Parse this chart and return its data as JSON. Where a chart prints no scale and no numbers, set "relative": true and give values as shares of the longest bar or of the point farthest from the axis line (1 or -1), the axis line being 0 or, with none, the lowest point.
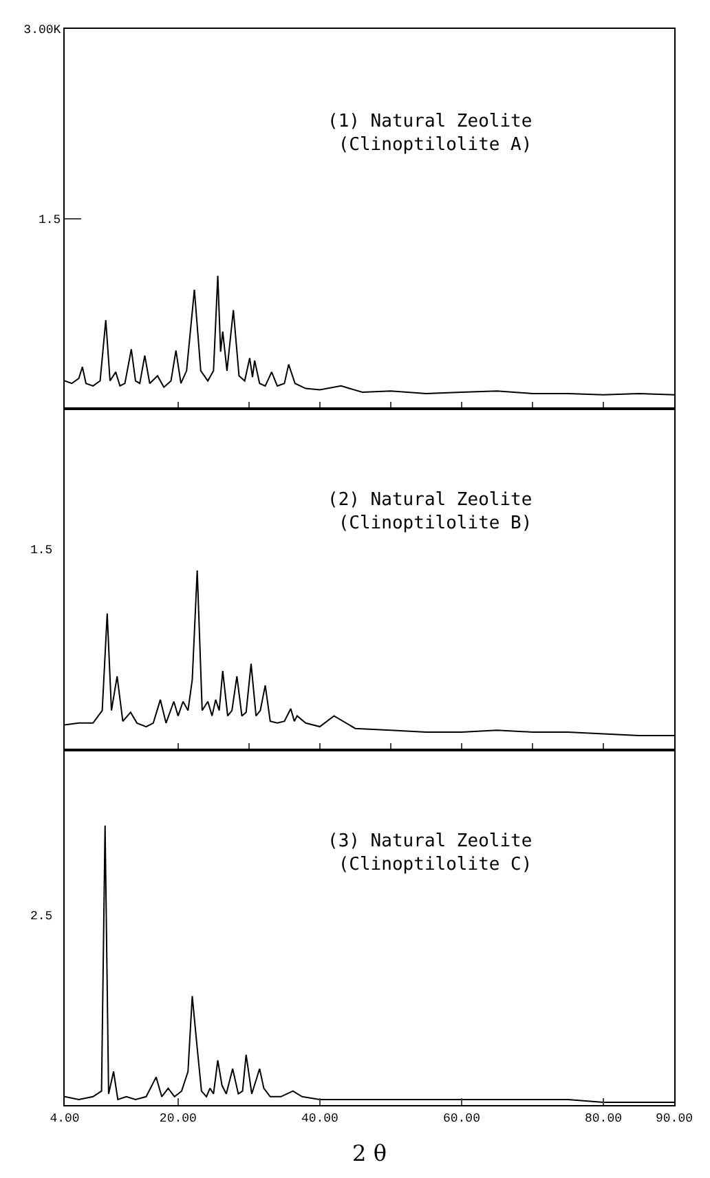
{
  "chart_data": [
    {
      "type": "line",
      "title": "(1) Natural Zeolite\n(Clinoptilolite A)",
      "xlim": [
        4,
        90
      ],
      "xticks": [
        {
          "value": 20,
          "label": null
        },
        {
          "value": 30,
          "label": null
        },
        {
          "value": 40,
          "label": null
        },
        {
          "value": 50,
          "label": null
        },
        {
          "value": 60,
          "label": null
        },
        {
          "value": 70,
          "label": null
        },
        {
          "value": 80,
          "label": null
        }
      ],
      "ylim": [
        0,
        3
      ],
      "yticks": [
        {
          "value": 1.5,
          "label": "1.5"
        },
        {
          "value": 3,
          "label": "3.00K"
        }
      ],
      "tick_labels": "y",
      "marker": "none",
      "line_style": "solid",
      "series": [
        {
          "color": "#000000",
          "x": [
            4,
            5,
            6,
            6.5,
            7,
            8,
            9,
            9.8,
            10.4,
            11.2,
            11.8,
            12.5,
            13.4,
            14,
            14.6,
            15.3,
            16,
            17.1,
            18,
            19,
            19.7,
            20.4,
            21.2,
            22.3,
            23.2,
            24.2,
            25,
            25.6,
            26,
            26.3,
            26.9,
            27.8,
            28.6,
            29.4,
            30.1,
            30.5,
            30.8,
            31.5,
            32.3,
            33.2,
            34,
            35,
            35.6,
            36.5,
            38,
            40,
            43,
            46,
            50,
            55,
            60,
            65,
            70,
            75,
            80,
            85,
            90
          ],
          "values": [
            0.22,
            0.2,
            0.24,
            0.33,
            0.2,
            0.18,
            0.22,
            0.7,
            0.22,
            0.29,
            0.18,
            0.2,
            0.47,
            0.22,
            0.2,
            0.42,
            0.2,
            0.26,
            0.17,
            0.22,
            0.46,
            0.2,
            0.3,
            0.94,
            0.3,
            0.22,
            0.3,
            1.05,
            0.45,
            0.61,
            0.3,
            0.78,
            0.26,
            0.22,
            0.4,
            0.25,
            0.38,
            0.2,
            0.18,
            0.29,
            0.18,
            0.2,
            0.35,
            0.2,
            0.16,
            0.15,
            0.18,
            0.13,
            0.14,
            0.12,
            0.13,
            0.14,
            0.12,
            0.12,
            0.11,
            0.12,
            0.11
          ]
        }
      ]
    },
    {
      "type": "line",
      "title": "(2) Natural Zeolite\n(Clinoptilolite B)",
      "annotations": [
        "1.5"
      ],
      "relative": true,
      "xlim": [
        4,
        90
      ],
      "xticks": [
        {
          "value": 20,
          "label": null
        },
        {
          "value": 30,
          "label": null
        },
        {
          "value": 40,
          "label": null
        },
        {
          "value": 50,
          "label": null
        },
        {
          "value": 60,
          "label": null
        },
        {
          "value": 70,
          "label": null
        },
        {
          "value": 80,
          "label": null
        }
      ],
      "tick_labels": false,
      "marker": "none",
      "line_style": "solid",
      "series": [
        {
          "color": "#000000",
          "x": [
            4,
            6,
            8,
            9.3,
            10,
            10.6,
            11.4,
            12.2,
            13.3,
            14.2,
            15.5,
            16.5,
            17.5,
            18.3,
            19.4,
            20,
            20.7,
            21.4,
            22,
            22.7,
            23.4,
            24.2,
            24.8,
            25.3,
            25.8,
            26.3,
            27,
            27.6,
            28.3,
            29,
            29.6,
            30.3,
            31,
            31.6,
            32.3,
            33,
            34,
            35,
            35.9,
            36.4,
            36.8,
            38,
            40,
            42,
            45,
            50,
            55,
            60,
            65,
            70,
            75,
            80,
            85,
            90
          ],
          "values": [
            0.14,
            0.15,
            0.15,
            0.22,
            0.76,
            0.22,
            0.41,
            0.16,
            0.21,
            0.15,
            0.13,
            0.15,
            0.28,
            0.15,
            0.27,
            0.19,
            0.27,
            0.22,
            0.39,
            1,
            0.22,
            0.27,
            0.19,
            0.28,
            0.22,
            0.44,
            0.19,
            0.22,
            0.41,
            0.19,
            0.21,
            0.48,
            0.19,
            0.22,
            0.36,
            0.16,
            0.15,
            0.16,
            0.23,
            0.16,
            0.19,
            0.15,
            0.13,
            0.19,
            0.12,
            0.11,
            0.1,
            0.1,
            0.11,
            0.1,
            0.1,
            0.09,
            0.08,
            0.08
          ]
        }
      ]
    },
    {
      "type": "line",
      "title": "(3) Natural Zeolite\n(Clinoptilolite C)",
      "annotations": [
        "2.5"
      ],
      "relative": true,
      "xlabel": "2 θ",
      "xlim": [
        4,
        90
      ],
      "xticks": [
        {
          "value": 4,
          "label": "4.00"
        },
        {
          "value": 20,
          "label": "20.00"
        },
        {
          "value": 40,
          "label": "40.00"
        },
        {
          "value": 60,
          "label": "60.00"
        },
        {
          "value": 80,
          "label": "80.00"
        },
        {
          "value": 90,
          "label": "90.00"
        }
      ],
      "tick_labels": "x",
      "marker": "none",
      "line_style": "solid",
      "series": [
        {
          "color": "#000000",
          "x": [
            4,
            6,
            8,
            9.2,
            9.7,
            10.2,
            10.9,
            11.5,
            12.7,
            14,
            15.5,
            16.9,
            17.7,
            18.6,
            19.5,
            20.5,
            21.4,
            22,
            22.6,
            23.3,
            24,
            24.5,
            25,
            25.6,
            26.2,
            26.8,
            27.7,
            28.5,
            29.1,
            29.6,
            30.4,
            31.5,
            32.1,
            33,
            34.5,
            36.2,
            37.5,
            40,
            45,
            50,
            55,
            60,
            65,
            70,
            75,
            80,
            85,
            90
          ],
          "values": [
            0.03,
            0.02,
            0.03,
            0.05,
            1,
            0.04,
            0.12,
            0.02,
            0.03,
            0.02,
            0.03,
            0.1,
            0.03,
            0.06,
            0.03,
            0.05,
            0.12,
            0.39,
            0.23,
            0.05,
            0.03,
            0.06,
            0.04,
            0.16,
            0.07,
            0.04,
            0.13,
            0.04,
            0.05,
            0.18,
            0.04,
            0.13,
            0.06,
            0.03,
            0.03,
            0.05,
            0.03,
            0.02,
            0.02,
            0.02,
            0.02,
            0.02,
            0.02,
            0.02,
            0.02,
            0.01,
            0.01,
            0.01
          ]
        }
      ]
    }
  ]
}
